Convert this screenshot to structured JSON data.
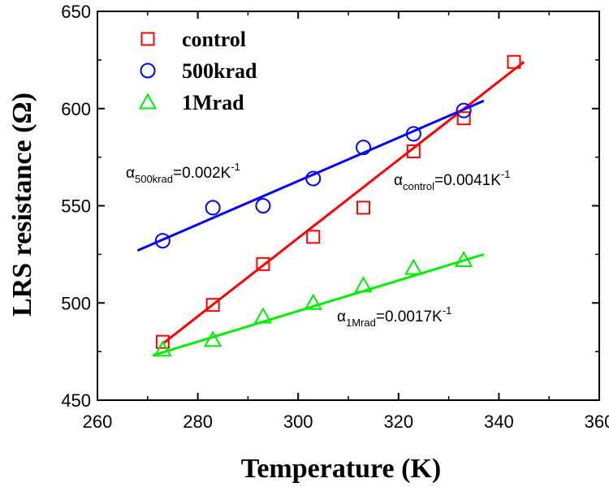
{
  "chart_data": {
    "type": "scatter",
    "title": "",
    "xlabel": "Temperature (K)",
    "ylabel": "LRS resistance (Ω)",
    "xlim": [
      260,
      360
    ],
    "ylim": [
      450,
      650
    ],
    "x_ticks": [
      "260",
      "280",
      "300",
      "320",
      "340",
      "360"
    ],
    "y_ticks": [
      "450",
      "500",
      "550",
      "600",
      "650"
    ],
    "legend_position": "top-left",
    "series": [
      {
        "name": "control",
        "marker": "square",
        "color": "#ff0000",
        "x": [
          273,
          283,
          293,
          303,
          313,
          323,
          333,
          343
        ],
        "y": [
          480,
          499,
          520,
          534,
          549,
          578,
          595,
          624
        ],
        "fit_line": {
          "x": [
            273,
            345
          ],
          "y": [
            479,
            624
          ]
        }
      },
      {
        "name": "500krad",
        "marker": "circle",
        "color": "#0000ff",
        "x": [
          273,
          283,
          293,
          303,
          313,
          323,
          333
        ],
        "y": [
          532,
          549,
          550,
          564,
          580,
          587,
          599
        ],
        "fit_line": {
          "x": [
            268,
            337
          ],
          "y": [
            527,
            604
          ]
        }
      },
      {
        "name": "1Mrad",
        "marker": "triangle",
        "color": "#00ee00",
        "x": [
          273,
          283,
          293,
          303,
          313,
          323,
          333
        ],
        "y": [
          476,
          481,
          493,
          500,
          509,
          518,
          522
        ],
        "fit_line": {
          "x": [
            271,
            337
          ],
          "y": [
            473,
            525
          ]
        }
      }
    ],
    "annotations": [
      {
        "alpha": "α",
        "sub": "500krad",
        "value": "=0.002K",
        "sup": "-1"
      },
      {
        "alpha": "α",
        "sub": "control",
        "value": "=0.0041K",
        "sup": "-1"
      },
      {
        "alpha": "α",
        "sub": "1Mrad",
        "value": "=0.0017K",
        "sup": "-1"
      }
    ]
  }
}
